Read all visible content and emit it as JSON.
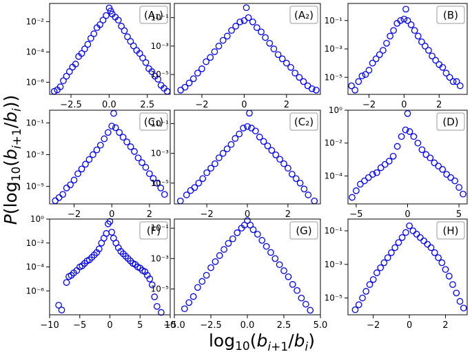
{
  "figure": {
    "xlabel": "log10(b_{i+1}/b_i)",
    "ylabel": "P(log10(b_{i+1}/b_i))",
    "marker_color": "#0000ff"
  },
  "chart_data": [
    {
      "type": "scatter",
      "label": "(A₁)",
      "title": "",
      "xlim": [
        -3.9,
        4.0
      ],
      "ylim": [
        -6.8,
        -0.8
      ],
      "xticks": [
        -2.5,
        0.0,
        2.5
      ],
      "xticklabels": [
        "−2.5",
        "0.0",
        "2.5"
      ],
      "yticks": [
        -6,
        -4,
        -2
      ],
      "yticklabels": [
        "10⁻⁶",
        "10⁻⁴",
        "10⁻²"
      ],
      "grid": false,
      "log_y": true,
      "x": [
        -3.6,
        -3.4,
        -3.2,
        -3.0,
        -2.8,
        -2.6,
        -2.4,
        -2.2,
        -2.0,
        -1.8,
        -1.6,
        -1.4,
        -1.2,
        -1.0,
        -0.8,
        -0.6,
        -0.4,
        -0.2,
        0.0,
        0.1,
        0.2,
        0.4,
        0.6,
        0.8,
        1.0,
        1.2,
        1.4,
        1.6,
        1.8,
        2.0,
        2.2,
        2.4,
        2.6,
        2.8,
        3.0,
        3.2,
        3.4,
        3.6,
        3.8
      ],
      "y": [
        -6.6,
        -6.5,
        -6.3,
        -5.9,
        -5.6,
        -5.3,
        -5.0,
        -4.8,
        -4.3,
        -4.1,
        -3.8,
        -3.5,
        -3.1,
        -2.8,
        -2.4,
        -2.2,
        -1.9,
        -1.6,
        -1.1,
        -1.3,
        -1.5,
        -1.7,
        -1.9,
        -2.3,
        -2.6,
        -3.0,
        -3.3,
        -3.6,
        -3.9,
        -4.1,
        -4.4,
        -4.7,
        -5.1,
        -5.3,
        -5.6,
        -5.8,
        -6.2,
        -6.4,
        -6.6
      ]
    },
    {
      "type": "scatter",
      "label": "(A₂)",
      "title": "",
      "xlim": [
        -3.3,
        3.6
      ],
      "ylim": [
        -6.4,
        0.0
      ],
      "xticks": [
        -2,
        0,
        2
      ],
      "xticklabels": [
        "−2",
        "0",
        "2"
      ],
      "yticks": [
        -5,
        -3,
        -1
      ],
      "yticklabels": [
        "10⁻⁵",
        "10⁻³",
        "10⁻¹"
      ],
      "grid": false,
      "log_y": true,
      "x": [
        -3.0,
        -2.8,
        -2.6,
        -2.4,
        -2.2,
        -2.0,
        -1.8,
        -1.6,
        -1.4,
        -1.2,
        -1.0,
        -0.8,
        -0.6,
        -0.4,
        -0.2,
        0.0,
        0.1,
        0.2,
        0.4,
        0.6,
        0.8,
        1.0,
        1.2,
        1.4,
        1.6,
        1.8,
        2.0,
        2.2,
        2.4,
        2.6,
        2.8,
        3.0,
        3.2,
        3.4
      ],
      "y": [
        -6.1,
        -5.9,
        -5.6,
        -5.3,
        -4.9,
        -4.6,
        -4.1,
        -3.8,
        -3.4,
        -3.0,
        -2.6,
        -2.3,
        -1.9,
        -1.6,
        -1.3,
        -1.2,
        -0.3,
        -1.0,
        -1.3,
        -1.7,
        -2.0,
        -2.4,
        -2.8,
        -3.2,
        -3.6,
        -3.9,
        -4.2,
        -4.5,
        -4.9,
        -5.2,
        -5.5,
        -5.8,
        -6.0,
        -6.1
      ]
    },
    {
      "type": "scatter",
      "label": "(B)",
      "title": "",
      "xlim": [
        -3.2,
        3.6
      ],
      "ylim": [
        -6.2,
        0.2
      ],
      "xticks": [
        -2,
        0,
        2
      ],
      "xticklabels": [
        "−2",
        "0",
        "2"
      ],
      "yticks": [
        -5,
        -3,
        -1
      ],
      "yticklabels": [
        "10⁻⁵",
        "10⁻³",
        "10⁻¹"
      ],
      "grid": false,
      "log_y": true,
      "x": [
        -3.0,
        -2.8,
        -2.6,
        -2.4,
        -2.2,
        -2.0,
        -1.8,
        -1.6,
        -1.4,
        -1.2,
        -1.0,
        -0.8,
        -0.6,
        -0.4,
        -0.2,
        0.0,
        0.1,
        0.2,
        0.4,
        0.6,
        0.8,
        1.0,
        1.2,
        1.4,
        1.6,
        1.8,
        2.0,
        2.2,
        2.4,
        2.6,
        2.8,
        3.0,
        3.2
      ],
      "y": [
        -5.6,
        -5.9,
        -5.3,
        -4.9,
        -4.8,
        -4.5,
        -4.0,
        -3.7,
        -3.4,
        -3.1,
        -2.6,
        -2.1,
        -1.7,
        -1.2,
        -1.0,
        -0.9,
        -0.2,
        -1.0,
        -1.3,
        -1.7,
        -2.1,
        -2.5,
        -2.8,
        -3.1,
        -3.5,
        -3.8,
        -4.1,
        -4.3,
        -4.7,
        -5.0,
        -5.3,
        -5.3,
        -5.6
      ]
    },
    {
      "type": "scatter",
      "label": "(C₁)",
      "title": "",
      "xlim": [
        -3.3,
        3.1
      ],
      "ylim": [
        -6.1,
        -0.2
      ],
      "xticks": [
        -2,
        0,
        2
      ],
      "xticklabels": [
        "−2",
        "0",
        "2"
      ],
      "yticks": [
        -5,
        -3,
        -1
      ],
      "yticklabels": [
        "10⁻⁵",
        "10⁻³",
        "10⁻¹"
      ],
      "grid": false,
      "log_y": true,
      "x": [
        -3.0,
        -2.8,
        -2.6,
        -2.4,
        -2.2,
        -2.0,
        -1.8,
        -1.6,
        -1.4,
        -1.2,
        -1.0,
        -0.8,
        -0.6,
        -0.4,
        -0.2,
        0.0,
        0.1,
        0.2,
        0.4,
        0.6,
        0.8,
        1.0,
        1.2,
        1.4,
        1.6,
        1.8,
        2.0,
        2.2,
        2.4,
        2.6,
        2.8
      ],
      "y": [
        -5.9,
        -5.7,
        -5.5,
        -5.1,
        -4.9,
        -4.6,
        -4.2,
        -3.9,
        -3.6,
        -3.3,
        -3.0,
        -2.7,
        -2.4,
        -2.0,
        -1.6,
        -1.2,
        -0.4,
        -1.3,
        -1.6,
        -1.9,
        -2.2,
        -2.5,
        -2.8,
        -3.2,
        -3.5,
        -3.8,
        -4.2,
        -4.5,
        -4.8,
        -5.1,
        -5.5
      ]
    },
    {
      "type": "scatter",
      "label": "(C₂)",
      "title": "",
      "xlim": [
        -3.6,
        3.6
      ],
      "ylim": [
        -6.4,
        -0.1
      ],
      "xticks": [
        -2,
        0,
        2
      ],
      "xticklabels": [
        "−2",
        "0",
        "2"
      ],
      "yticks": [
        -5,
        -3,
        -1
      ],
      "yticklabels": [
        "10⁻⁵",
        "10⁻³",
        "10⁻¹"
      ],
      "grid": false,
      "log_y": true,
      "x": [
        -3.3,
        -3.0,
        -2.8,
        -2.6,
        -2.4,
        -2.2,
        -2.0,
        -1.8,
        -1.6,
        -1.4,
        -1.2,
        -1.0,
        -0.8,
        -0.6,
        -0.4,
        -0.2,
        0.0,
        0.1,
        0.2,
        0.4,
        0.6,
        0.8,
        1.0,
        1.2,
        1.4,
        1.6,
        1.8,
        2.0,
        2.2,
        2.4,
        2.6,
        2.8,
        3.0,
        3.3
      ],
      "y": [
        -6.2,
        -5.8,
        -5.5,
        -5.3,
        -5.0,
        -4.7,
        -4.3,
        -4.0,
        -3.7,
        -3.3,
        -3.0,
        -2.7,
        -2.4,
        -2.0,
        -1.7,
        -1.3,
        -1.2,
        -0.3,
        -1.3,
        -1.5,
        -1.9,
        -2.2,
        -2.5,
        -2.8,
        -3.1,
        -3.4,
        -3.7,
        -4.0,
        -4.4,
        -4.7,
        -5.0,
        -5.4,
        -5.8,
        -6.2
      ]
    },
    {
      "type": "scatter",
      "label": "(D)",
      "title": "",
      "xlim": [
        -5.8,
        5.8
      ],
      "ylim": [
        -5.7,
        0.0
      ],
      "xticks": [
        -5,
        0,
        5
      ],
      "xticklabels": [
        "−5",
        "0",
        "5"
      ],
      "yticks": [
        -4,
        -2,
        0
      ],
      "yticklabels": [
        "10⁻⁴",
        "10⁻²",
        "10⁰"
      ],
      "grid": false,
      "log_y": true,
      "x": [
        -5.4,
        -5.0,
        -4.6,
        -4.2,
        -3.8,
        -3.4,
        -3.0,
        -2.6,
        -2.2,
        -1.8,
        -1.4,
        -1.0,
        -0.6,
        -0.2,
        0.0,
        0.2,
        0.6,
        1.0,
        1.4,
        1.8,
        2.2,
        2.6,
        3.0,
        3.4,
        3.8,
        4.2,
        4.6,
        5.0,
        5.4
      ],
      "y": [
        -5.3,
        -4.9,
        -4.5,
        -4.3,
        -4.1,
        -3.9,
        -3.8,
        -3.5,
        -3.3,
        -3.1,
        -2.8,
        -2.2,
        -1.6,
        -1.2,
        -0.2,
        -1.3,
        -1.6,
        -2.0,
        -2.4,
        -2.7,
        -2.9,
        -3.2,
        -3.4,
        -3.6,
        -3.9,
        -4.1,
        -4.3,
        -4.7,
        -5.1
      ]
    },
    {
      "type": "scatter",
      "label": "(F)",
      "title": "",
      "xlim": [
        -10,
        10
      ],
      "ylim": [
        -8.0,
        0.0
      ],
      "xticks": [
        -10,
        -5,
        0,
        5,
        10
      ],
      "xticklabels": [
        "−10",
        "−5",
        "0",
        "5",
        "10"
      ],
      "yticks": [
        -6,
        -4,
        -2,
        0
      ],
      "yticklabels": [
        "10⁻⁶",
        "10⁻⁴",
        "10⁻²",
        "10⁰"
      ],
      "grid": false,
      "log_y": true,
      "x": [
        -8.5,
        -8.0,
        -7.2,
        -6.8,
        -6.4,
        -6.0,
        -5.5,
        -5.0,
        -4.6,
        -4.2,
        -3.8,
        -3.4,
        -3.0,
        -2.6,
        -2.2,
        -1.8,
        -1.4,
        -1.0,
        -0.6,
        -0.3,
        0.0,
        0.3,
        0.6,
        1.0,
        1.4,
        1.8,
        2.2,
        2.6,
        3.0,
        3.4,
        3.8,
        4.2,
        4.6,
        5.0,
        5.4,
        5.8,
        6.2,
        6.6,
        7.0,
        7.4,
        7.8,
        8.5
      ],
      "y": [
        -7.2,
        -7.6,
        -5.3,
        -4.8,
        -4.7,
        -4.5,
        -4.3,
        -4.0,
        -3.9,
        -3.7,
        -3.5,
        -3.4,
        -3.2,
        -3.0,
        -2.8,
        -2.5,
        -2.0,
        -1.6,
        -1.2,
        -0.4,
        -0.2,
        -1.1,
        -1.6,
        -2.0,
        -2.4,
        -2.7,
        -2.9,
        -3.1,
        -3.3,
        -3.5,
        -3.7,
        -3.8,
        -4.0,
        -4.1,
        -4.3,
        -4.4,
        -4.7,
        -5.0,
        -5.5,
        -6.5,
        -7.3,
        -7.8
      ]
    },
    {
      "type": "scatter",
      "label": "(G)",
      "title": "",
      "xlim": [
        -5.0,
        5.0
      ],
      "ylim": [
        -6.7,
        -0.4
      ],
      "xticks": [
        -5.0,
        -2.5,
        0.0,
        2.5,
        5.0
      ],
      "xticklabels": [
        "−5.0",
        "−2.5",
        "0.0",
        "2.5",
        "5.0"
      ],
      "yticks": [
        -5,
        -3,
        -1
      ],
      "yticklabels": [
        "10⁻⁵",
        "10⁻³",
        "10⁻¹"
      ],
      "grid": false,
      "log_y": true,
      "x": [
        -4.3,
        -4.0,
        -3.7,
        -3.4,
        -3.1,
        -2.8,
        -2.5,
        -2.2,
        -1.9,
        -1.6,
        -1.3,
        -1.0,
        -0.7,
        -0.4,
        -0.2,
        0.0,
        0.2,
        0.4,
        0.7,
        1.0,
        1.3,
        1.6,
        1.9,
        2.2,
        2.5,
        2.8,
        3.1,
        3.4,
        3.7,
        4.0,
        4.3
      ],
      "y": [
        -6.3,
        -5.9,
        -5.5,
        -4.9,
        -4.5,
        -4.1,
        -3.6,
        -3.2,
        -2.8,
        -2.4,
        -2.0,
        -1.7,
        -1.3,
        -1.0,
        -0.8,
        -0.5,
        -0.8,
        -1.1,
        -1.4,
        -1.8,
        -2.2,
        -2.6,
        -3.0,
        -3.4,
        -3.8,
        -4.2,
        -4.7,
        -5.1,
        -5.6,
        -6.0,
        -6.4
      ]
    },
    {
      "type": "scatter",
      "label": "(H)",
      "title": "",
      "xlim": [
        -3.4,
        3.2
      ],
      "ylim": [
        -6.0,
        -0.3
      ],
      "xticks": [
        -2,
        0,
        2
      ],
      "xticklabels": [
        "−2",
        "0",
        "2"
      ],
      "yticks": [
        -5,
        -3,
        -1
      ],
      "yticklabels": [
        "10⁻⁵",
        "10⁻³",
        "10⁻¹"
      ],
      "grid": false,
      "log_y": true,
      "x": [
        -3.0,
        -2.8,
        -2.6,
        -2.4,
        -2.2,
        -2.0,
        -1.8,
        -1.6,
        -1.4,
        -1.2,
        -1.0,
        -0.8,
        -0.6,
        -0.4,
        -0.2,
        0.0,
        0.2,
        0.4,
        0.6,
        0.8,
        1.0,
        1.2,
        1.4,
        1.6,
        1.8,
        2.0,
        2.2,
        2.4,
        2.6,
        2.8,
        3.0
      ],
      "y": [
        -5.7,
        -5.4,
        -5.0,
        -4.6,
        -4.2,
        -3.9,
        -3.5,
        -3.2,
        -2.9,
        -2.6,
        -2.3,
        -2.0,
        -1.7,
        -1.4,
        -1.1,
        -0.7,
        -1.0,
        -1.2,
        -1.4,
        -1.6,
        -1.8,
        -2.0,
        -2.3,
        -2.6,
        -2.9,
        -3.3,
        -3.7,
        -4.2,
        -4.7,
        -5.2,
        -5.6
      ]
    }
  ]
}
